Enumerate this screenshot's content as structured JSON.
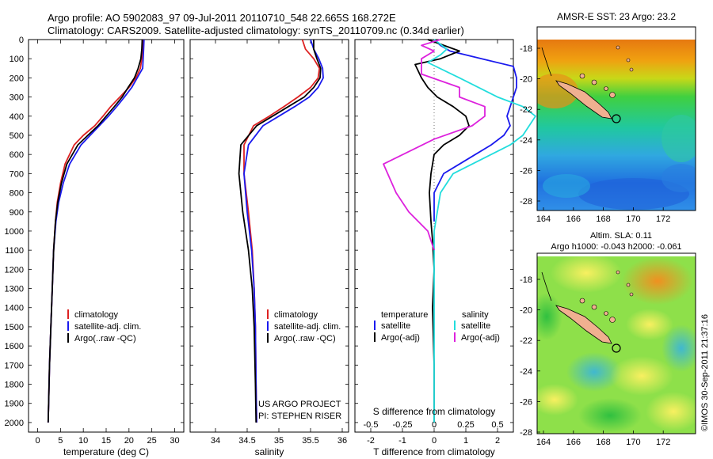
{
  "header": {
    "line1": "Argo profile: AO 5902083_97 09-Jul-2011 20110710_548 22.665S 168.272E",
    "line2": "Climatology: CARS2009. Satellite-adjusted climatology: synTS_20110709.nc (0.34d earlier)"
  },
  "depth_ticks": [
    "0",
    "100",
    "200",
    "300",
    "400",
    "500",
    "600",
    "700",
    "800",
    "900",
    "1000",
    "1100",
    "1200",
    "1300",
    "1400",
    "1500",
    "1600",
    "1700",
    "1800",
    "1900",
    "2000"
  ],
  "colors": {
    "climatology": "#dd2222",
    "satellite": "#1a1aee",
    "argo": "#000000",
    "salinity_sat": "#22dddd",
    "salinity_argo": "#dd22dd"
  },
  "chart_data": [
    {
      "type": "line",
      "xlabel": "temperature (deg C)",
      "ylabel": "depth",
      "xlim": [
        -2,
        32
      ],
      "ylim": [
        0,
        2050
      ],
      "x_ticks": [
        "0",
        "5",
        "10",
        "15",
        "20",
        "25",
        "30"
      ],
      "legend": [
        "climatology",
        "satellite-adj. clim.",
        "Argo(..raw -QC)"
      ],
      "series": [
        {
          "name": "climatology",
          "x": [
            23.1,
            23.0,
            22.8,
            22.5,
            21.5,
            20.0,
            18.0,
            16.0,
            14.3,
            12.5,
            10.0,
            8.0,
            6.0,
            5.0,
            4.3,
            3.9,
            3.5,
            3.2,
            2.9,
            2.6,
            2.4,
            2.3
          ],
          "y": [
            0,
            50,
            100,
            150,
            200,
            250,
            300,
            350,
            400,
            450,
            500,
            550,
            650,
            750,
            850,
            950,
            1100,
            1300,
            1500,
            1700,
            1900,
            2000
          ]
        },
        {
          "name": "satellite-adj. clim.",
          "x": [
            23.3,
            23.2,
            23.1,
            23.0,
            21.8,
            20.6,
            19.0,
            17.3,
            15.5,
            13.5,
            11.5,
            9.5,
            7.0,
            5.6,
            4.6,
            4.0,
            3.5,
            3.2,
            2.9,
            2.6,
            2.4,
            2.3
          ],
          "y": [
            0,
            50,
            100,
            150,
            200,
            250,
            300,
            350,
            400,
            450,
            500,
            550,
            650,
            750,
            850,
            950,
            1100,
            1300,
            1500,
            1700,
            1900,
            2000
          ]
        },
        {
          "name": "Argo(..raw -QC)",
          "x": [
            22.9,
            22.8,
            22.6,
            22.0,
            21.2,
            19.8,
            18.5,
            16.8,
            15.0,
            13.2,
            11.0,
            8.8,
            6.4,
            5.2,
            4.4,
            3.9,
            3.5,
            3.2,
            2.9,
            2.6,
            2.4,
            2.3
          ],
          "y": [
            0,
            50,
            100,
            150,
            200,
            250,
            300,
            350,
            400,
            450,
            500,
            550,
            650,
            750,
            850,
            950,
            1100,
            1300,
            1500,
            1700,
            1900,
            2000
          ]
        }
      ]
    },
    {
      "type": "line",
      "xlabel": "salinity",
      "xlim": [
        33.6,
        36.1
      ],
      "ylim": [
        0,
        2050
      ],
      "x_ticks": [
        "34",
        "34.5",
        "35",
        "35.5",
        "36"
      ],
      "legend": [
        "climatology",
        "satellite-adj. clim."
      ],
      "legend_argo": "Argo(..raw -QC)",
      "annotation": [
        "US ARGO PROJECT",
        "PI: STEPHEN RISER"
      ],
      "series": [
        {
          "name": "climatology",
          "x": [
            35.37,
            35.42,
            35.55,
            35.64,
            35.62,
            35.5,
            35.3,
            35.08,
            34.85,
            34.6,
            34.45,
            34.45,
            34.52,
            34.58,
            34.61,
            34.63,
            34.64,
            34.65
          ],
          "y": [
            0,
            50,
            100,
            150,
            200,
            250,
            300,
            350,
            400,
            450,
            550,
            700,
            900,
            1100,
            1300,
            1500,
            1800,
            2000
          ]
        },
        {
          "name": "satellite-adj. clim.",
          "x": [
            35.5,
            35.55,
            35.63,
            35.69,
            35.7,
            35.62,
            35.48,
            35.25,
            35.0,
            34.75,
            34.52,
            34.45,
            34.5,
            34.57,
            34.61,
            34.63,
            34.64,
            34.65
          ],
          "y": [
            0,
            50,
            100,
            150,
            200,
            250,
            300,
            350,
            400,
            450,
            550,
            700,
            900,
            1100,
            1300,
            1500,
            1800,
            2000
          ]
        },
        {
          "name": "Argo(..raw -QC)",
          "x": [
            35.55,
            35.55,
            35.6,
            35.66,
            35.65,
            35.55,
            35.4,
            35.15,
            34.9,
            34.65,
            34.4,
            34.37,
            34.43,
            34.52,
            34.58,
            34.61,
            34.63,
            34.64
          ],
          "y": [
            0,
            50,
            100,
            150,
            200,
            250,
            300,
            350,
            400,
            450,
            550,
            700,
            900,
            1100,
            1300,
            1500,
            1800,
            2000
          ]
        }
      ]
    },
    {
      "type": "line",
      "xlabel": "T difference from climatology",
      "x2label": "S difference from climatology",
      "xlim": [
        -2.5,
        2.5
      ],
      "ylim": [
        0,
        2050
      ],
      "x_ticks": [
        "-2",
        "-1",
        "0",
        "1",
        "2"
      ],
      "x2_ticks": [
        "-0.5",
        "-0.25",
        "0",
        "0.25",
        "0.5"
      ],
      "legend_temperature": {
        "title": "temperature",
        "items": [
          "satellite",
          "Argo(-adj)"
        ]
      },
      "legend_salinity": {
        "title": "salinity",
        "items": [
          "satellite",
          "Argo(-adj)"
        ]
      },
      "series": [
        {
          "name": "temperature satellite",
          "x": [
            0,
            0.2,
            0.5,
            1.5,
            2.5,
            2.6,
            2.6,
            2.5,
            2.4,
            2.3,
            2.4,
            2.2,
            1.8,
            1.3,
            0.8,
            0.3,
            0.0,
            0.0
          ],
          "y": [
            0,
            30,
            60,
            100,
            140,
            200,
            250,
            300,
            350,
            400,
            450,
            500,
            550,
            600,
            650,
            700,
            800,
            950
          ]
        },
        {
          "name": "temperature Argo(-adj)",
          "x": [
            -0.2,
            0.8,
            0.2,
            -0.6,
            -0.4,
            -0.2,
            0.1,
            0.6,
            1.0,
            1.1,
            0.8,
            0.3,
            0.0,
            -0.1,
            -0.15,
            -0.1,
            -0.05,
            0.0,
            -0.05,
            0.0,
            0.0
          ],
          "y": [
            0,
            60,
            100,
            130,
            200,
            250,
            300,
            350,
            400,
            450,
            500,
            550,
            600,
            700,
            800,
            950,
            1050,
            1200,
            1400,
            1700,
            2000
          ]
        },
        {
          "name": "salinity satellite",
          "x": [
            0.0,
            0.1,
            0.05,
            -0.05,
            0.2,
            0.5,
            0.7,
            0.8,
            0.75,
            0.7,
            0.6,
            0.45,
            0.3,
            0.15,
            0.05,
            0.0,
            0.0
          ],
          "y": [
            0,
            50,
            80,
            120,
            200,
            300,
            350,
            400,
            450,
            500,
            550,
            600,
            650,
            700,
            800,
            1000,
            2000
          ]
        },
        {
          "name": "salinity Argo(-adj)",
          "x": [
            0.05,
            -0.1,
            0.0,
            -0.1,
            -0.1,
            0.2,
            0.2,
            0.4,
            0.4,
            0.3,
            0.0,
            -0.4,
            -0.3,
            -0.2,
            -0.05,
            0.0
          ],
          "y": [
            0,
            30,
            60,
            100,
            180,
            250,
            300,
            350,
            400,
            450,
            520,
            650,
            800,
            900,
            1000,
            1100
          ]
        }
      ]
    }
  ],
  "maps": {
    "top": {
      "title": "AMSR-E SST: 23 Argo: 23.2",
      "y_ticks": [
        "-18",
        "-20",
        "-22",
        "-24",
        "-26",
        "-28"
      ],
      "x_ticks": [
        "164",
        "166",
        "168",
        "170",
        "172"
      ]
    },
    "bottom": {
      "title1": "Altim. SLA: 0.11",
      "title2": "Argo h1000: -0.043 h2000: -0.061",
      "y_ticks": [
        "-18",
        "-20",
        "-22",
        "-24",
        "-26",
        "-28"
      ],
      "x_ticks": [
        "164",
        "166",
        "168",
        "170",
        "172"
      ]
    }
  },
  "credit": "©IMOS 30-Sep-2011 21:37:16"
}
